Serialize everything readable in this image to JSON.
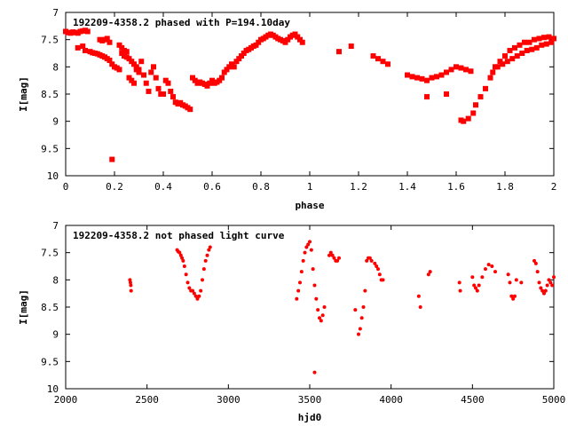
{
  "chart_data": [
    {
      "type": "scatter",
      "title": "192209-4358.2 phased with P=194.10day",
      "xlabel": "phase",
      "ylabel": "I[mag]",
      "xlim": [
        0,
        2
      ],
      "ylim": [
        7,
        10
      ],
      "y_inverted": true,
      "grid": false,
      "marker_color": "#ff0000",
      "marker": "star",
      "x_ticks": [
        "0",
        "0.2",
        "0.4",
        "0.6",
        "0.8",
        "1",
        "1.2",
        "1.4",
        "1.6",
        "1.8",
        "2"
      ],
      "y_ticks": [
        "7",
        "7.5",
        "8",
        "8.5",
        "9",
        "9.5",
        "10"
      ],
      "series": [
        {
          "x": [
            0.0,
            0.01,
            0.02,
            0.03,
            0.04,
            0.05,
            0.06,
            0.07,
            0.08,
            0.09,
            0.05,
            0.07,
            0.08,
            0.1,
            0.11,
            0.12,
            0.13,
            0.14,
            0.15,
            0.16,
            0.17,
            0.18,
            0.14,
            0.15,
            0.16,
            0.17,
            0.18,
            0.19,
            0.2,
            0.21,
            0.22,
            0.23,
            0.24,
            0.25,
            0.26,
            0.27,
            0.28,
            0.29,
            0.3,
            0.22,
            0.23,
            0.24,
            0.25,
            0.26,
            0.27,
            0.28,
            0.29,
            0.3,
            0.31,
            0.32,
            0.33,
            0.34,
            0.35,
            0.36,
            0.37,
            0.38,
            0.39,
            0.4,
            0.41,
            0.42,
            0.43,
            0.44,
            0.45,
            0.46,
            0.47,
            0.48,
            0.49,
            0.5,
            0.51,
            0.52,
            0.53,
            0.54,
            0.55,
            0.56,
            0.57,
            0.58,
            0.59,
            0.6,
            0.61,
            0.62,
            0.63,
            0.64,
            0.65,
            0.66,
            0.67,
            0.68,
            0.69,
            0.7,
            0.71,
            0.72,
            0.73,
            0.74,
            0.75,
            0.76,
            0.77,
            0.78,
            0.79,
            0.8,
            0.81,
            0.82,
            0.83,
            0.84,
            0.85,
            0.86,
            0.87,
            0.88,
            0.89,
            0.9,
            0.91,
            0.92,
            0.93,
            0.94,
            0.95,
            0.96,
            0.97,
            0.19,
            1.12,
            1.17,
            1.26,
            1.28,
            1.3,
            1.32,
            1.4,
            1.42,
            1.44,
            1.46,
            1.48,
            1.5,
            1.52,
            1.54,
            1.56,
            1.58,
            1.6,
            1.62,
            1.64,
            1.66,
            1.48,
            1.56,
            1.62,
            1.63,
            1.65,
            1.67,
            1.68,
            1.7,
            1.72,
            1.74,
            1.76,
            1.78,
            1.8,
            1.82,
            1.84,
            1.86,
            1.88,
            1.9,
            1.92,
            1.94,
            1.96,
            1.98,
            2.0,
            1.75,
            1.77,
            1.79,
            1.81,
            1.83,
            1.85,
            1.87,
            1.89,
            1.91,
            1.93,
            1.95,
            1.97,
            1.99
          ],
          "y": [
            7.35,
            7.37,
            7.38,
            7.36,
            7.37,
            7.38,
            7.35,
            7.34,
            7.33,
            7.35,
            7.65,
            7.62,
            7.7,
            7.72,
            7.74,
            7.75,
            7.76,
            7.78,
            7.8,
            7.82,
            7.85,
            7.88,
            7.5,
            7.52,
            7.5,
            7.48,
            7.55,
            7.95,
            8.0,
            8.02,
            8.05,
            7.75,
            7.8,
            7.82,
            7.85,
            7.9,
            7.95,
            8.05,
            8.1,
            7.6,
            7.65,
            7.7,
            7.72,
            8.2,
            8.25,
            8.3,
            8.0,
            8.05,
            7.9,
            8.15,
            8.3,
            8.45,
            8.1,
            8.0,
            8.2,
            8.4,
            8.5,
            8.5,
            8.25,
            8.3,
            8.45,
            8.55,
            8.65,
            8.68,
            8.66,
            8.7,
            8.72,
            8.75,
            8.78,
            8.2,
            8.25,
            8.3,
            8.28,
            8.3,
            8.32,
            8.35,
            8.3,
            8.25,
            8.3,
            8.28,
            8.25,
            8.2,
            8.1,
            8.05,
            8.0,
            7.95,
            8.0,
            7.9,
            7.85,
            7.8,
            7.75,
            7.7,
            7.68,
            7.65,
            7.62,
            7.6,
            7.55,
            7.5,
            7.48,
            7.45,
            7.42,
            7.4,
            7.42,
            7.45,
            7.48,
            7.5,
            7.52,
            7.55,
            7.5,
            7.45,
            7.42,
            7.4,
            7.45,
            7.5,
            7.55,
            9.7,
            7.72,
            7.62,
            7.8,
            7.85,
            7.9,
            7.95,
            8.15,
            8.18,
            8.2,
            8.22,
            8.25,
            8.2,
            8.18,
            8.15,
            8.1,
            8.05,
            8.0,
            8.02,
            8.05,
            8.08,
            8.55,
            8.5,
            8.98,
            9.0,
            8.95,
            8.85,
            8.7,
            8.55,
            8.4,
            8.2,
            8.0,
            7.9,
            7.8,
            7.7,
            7.65,
            7.6,
            7.55,
            7.55,
            7.5,
            7.48,
            7.46,
            7.45,
            7.48,
            8.1,
            8.0,
            7.95,
            7.9,
            7.85,
            7.8,
            7.75,
            7.7,
            7.68,
            7.65,
            7.6,
            7.58,
            7.55
          ]
        }
      ]
    },
    {
      "type": "scatter",
      "title": "192209-4358.2 not phased light curve",
      "xlabel": "hjd0",
      "ylabel": "I[mag]",
      "xlim": [
        2000,
        5000
      ],
      "ylim": [
        7,
        10
      ],
      "y_inverted": true,
      "grid": false,
      "marker_color": "#ff0000",
      "marker": "dot",
      "x_ticks": [
        "2000",
        "2500",
        "3000",
        "3500",
        "4000",
        "4500",
        "5000"
      ],
      "y_ticks": [
        "7",
        "7.5",
        "8",
        "8.5",
        "9",
        "9.5",
        "10"
      ],
      "series": [
        {
          "x": [
            2395,
            2398,
            2400,
            2402,
            2685,
            2692,
            2700,
            2708,
            2715,
            2722,
            2730,
            2740,
            2750,
            2760,
            2770,
            2780,
            2790,
            2800,
            2810,
            2820,
            2830,
            2840,
            2850,
            2860,
            2870,
            2880,
            2888,
            3420,
            3430,
            3440,
            3450,
            3460,
            3470,
            3480,
            3490,
            3500,
            3510,
            3520,
            3530,
            3540,
            3550,
            3560,
            3570,
            3580,
            3590,
            3530,
            3620,
            3630,
            3640,
            3650,
            3660,
            3670,
            3680,
            3780,
            3800,
            3810,
            3820,
            3830,
            3840,
            3850,
            3860,
            3870,
            3880,
            3900,
            3910,
            3920,
            3930,
            3940,
            3950,
            4170,
            4180,
            4230,
            4240,
            4420,
            4425,
            4500,
            4510,
            4520,
            4530,
            4540,
            4560,
            4580,
            4600,
            4620,
            4640,
            4720,
            4730,
            4740,
            4750,
            4760,
            4770,
            4800,
            4880,
            4890,
            4900,
            4910,
            4920,
            4930,
            4940,
            4950,
            4960,
            4970,
            4980,
            4990,
            5000
          ],
          "y": [
            8.0,
            8.05,
            8.1,
            8.2,
            7.45,
            7.48,
            7.5,
            7.55,
            7.6,
            7.65,
            7.75,
            7.9,
            8.05,
            8.15,
            8.2,
            8.2,
            8.25,
            8.3,
            8.35,
            8.3,
            8.2,
            8.0,
            7.8,
            7.65,
            7.55,
            7.45,
            7.4,
            8.35,
            8.2,
            8.05,
            7.85,
            7.65,
            7.5,
            7.4,
            7.35,
            7.3,
            7.45,
            7.8,
            8.1,
            8.35,
            8.55,
            8.7,
            8.75,
            8.65,
            8.5,
            9.7,
            7.55,
            7.5,
            7.55,
            7.6,
            7.65,
            7.65,
            7.6,
            8.55,
            9.0,
            8.9,
            8.7,
            8.5,
            8.2,
            7.65,
            7.6,
            7.6,
            7.65,
            7.7,
            7.75,
            7.8,
            7.9,
            8.0,
            8.0,
            8.3,
            8.5,
            7.9,
            7.85,
            8.05,
            8.2,
            7.95,
            8.1,
            8.15,
            8.2,
            8.1,
            7.95,
            7.8,
            7.72,
            7.75,
            7.85,
            7.9,
            8.05,
            8.3,
            8.35,
            8.3,
            8.0,
            8.05,
            7.65,
            7.7,
            7.85,
            8.05,
            8.15,
            8.2,
            8.25,
            8.2,
            8.1,
            8.0,
            8.05,
            8.1,
            7.95
          ]
        }
      ]
    }
  ]
}
